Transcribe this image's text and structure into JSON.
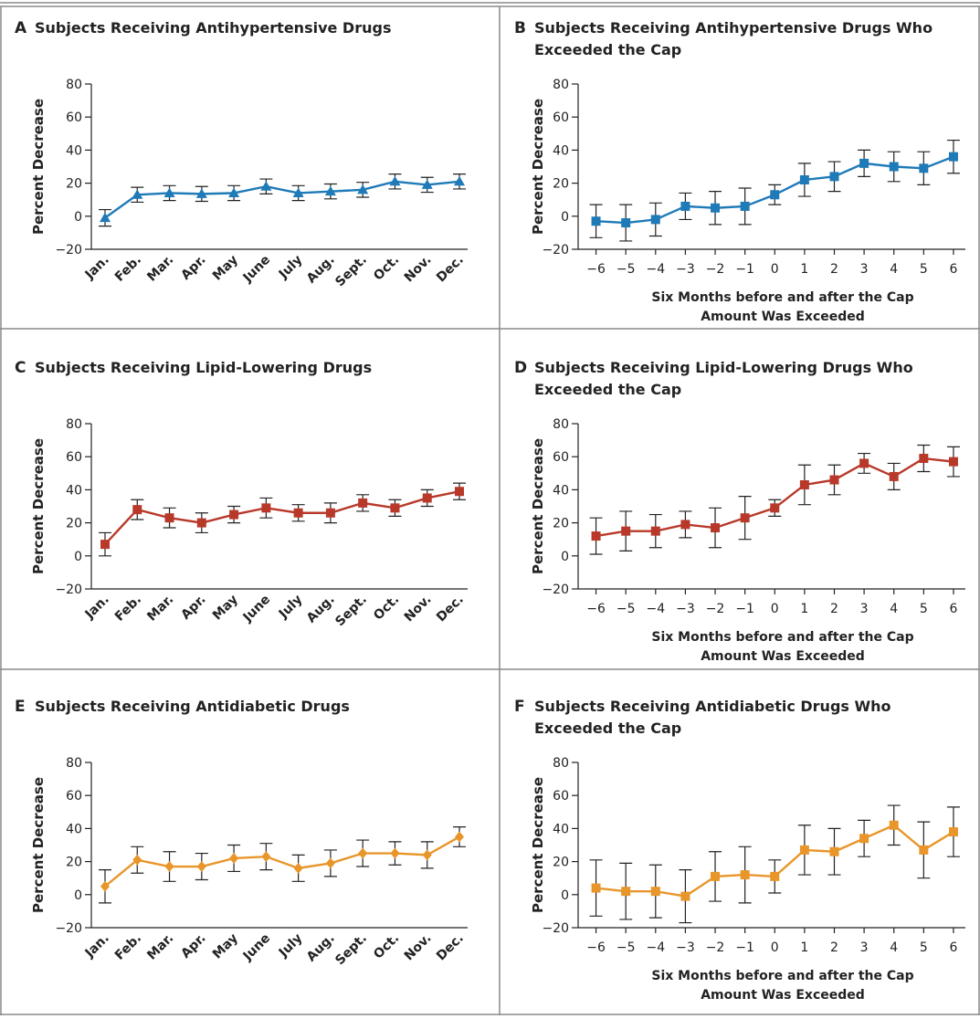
{
  "chart_data": [
    {
      "type": "line",
      "panel": "A",
      "title": "Subjects Receiving Antihypertensive Drugs",
      "y_label": "Percent Decrease",
      "categories": [
        "Jan.",
        "Feb.",
        "Mar.",
        "Apr.",
        "May",
        "June",
        "July",
        "Aug.",
        "Sept.",
        "Oct.",
        "Nov.",
        "Dec."
      ],
      "series": [
        {
          "color": "#1f7ab8",
          "marker": "triangle",
          "values": [
            -1,
            13,
            14,
            13.5,
            14,
            18,
            14,
            15,
            16,
            21,
            19,
            21
          ],
          "errors": [
            5,
            4.5,
            4.5,
            4.5,
            4.5,
            4.5,
            4.5,
            4.5,
            4.5,
            4.5,
            4.5,
            4.5
          ]
        }
      ],
      "ylim": [
        -20,
        80
      ],
      "yticks": [
        {
          "value": -20,
          "label": "−20"
        },
        0,
        20,
        40,
        60,
        80
      ]
    },
    {
      "type": "line",
      "panel": "B",
      "title": "Subjects Receiving Antihypertensive Drugs Who Exceeded the Cap",
      "y_label": "Percent Decrease",
      "x_label": "Six Months before and after the Cap Amount Was Exceeded",
      "x": [
        -6,
        -5,
        -4,
        -3,
        -2,
        -1,
        0,
        1,
        2,
        3,
        4,
        5,
        6
      ],
      "series": [
        {
          "color": "#1f7ab8",
          "marker": "square",
          "values": [
            -3,
            -4,
            -2,
            6,
            5,
            6,
            13,
            22,
            24,
            32,
            30,
            29,
            36
          ],
          "errors": [
            10,
            11,
            10,
            8,
            10,
            11,
            6,
            10,
            9,
            8,
            9,
            10,
            10
          ]
        }
      ],
      "xlim": [
        -6.6,
        6.4
      ],
      "xticks": [
        {
          "value": -6,
          "label": "−6"
        },
        {
          "value": -5,
          "label": "−5"
        },
        {
          "value": -4,
          "label": "−4"
        },
        {
          "value": -3,
          "label": "−3"
        },
        {
          "value": -2,
          "label": "−2"
        },
        {
          "value": -1,
          "label": "−1"
        },
        0,
        1,
        2,
        3,
        4,
        5,
        6
      ],
      "ylim": [
        -20,
        80
      ],
      "yticks": [
        {
          "value": -20,
          "label": "−20"
        },
        0,
        20,
        40,
        60,
        80
      ]
    },
    {
      "type": "line",
      "panel": "C",
      "title": "Subjects Receiving Lipid-Lowering Drugs",
      "y_label": "Percent Decrease",
      "categories": [
        "Jan.",
        "Feb.",
        "Mar.",
        "Apr.",
        "May",
        "June",
        "July",
        "Aug.",
        "Sept.",
        "Oct.",
        "Nov.",
        "Dec."
      ],
      "series": [
        {
          "color": "#b8392a",
          "marker": "square",
          "values": [
            7,
            28,
            23,
            20,
            25,
            29,
            26,
            26,
            32,
            29,
            35,
            39
          ],
          "errors": [
            7,
            6,
            6,
            6,
            5,
            6,
            5,
            6,
            5,
            5,
            5,
            5
          ]
        }
      ],
      "ylim": [
        -20,
        80
      ],
      "yticks": [
        {
          "value": -20,
          "label": "−20"
        },
        0,
        20,
        40,
        60,
        80
      ]
    },
    {
      "type": "line",
      "panel": "D",
      "title": "Subjects Receiving Lipid-Lowering Drugs Who Exceeded the Cap",
      "y_label": "Percent Decrease",
      "x_label": "Six Months before and after the Cap Amount Was Exceeded",
      "x": [
        -6,
        -5,
        -4,
        -3,
        -2,
        -1,
        0,
        1,
        2,
        3,
        4,
        5,
        6
      ],
      "series": [
        {
          "color": "#b8392a",
          "marker": "square",
          "values": [
            12,
            15,
            15,
            19,
            17,
            23,
            29,
            43,
            46,
            56,
            48,
            59,
            57
          ],
          "errors": [
            11,
            12,
            10,
            8,
            12,
            13,
            5,
            12,
            9,
            6,
            8,
            8,
            9
          ]
        }
      ],
      "xlim": [
        -6.6,
        6.4
      ],
      "xticks": [
        {
          "value": -6,
          "label": "−6"
        },
        {
          "value": -5,
          "label": "−5"
        },
        {
          "value": -4,
          "label": "−4"
        },
        {
          "value": -3,
          "label": "−3"
        },
        {
          "value": -2,
          "label": "−2"
        },
        {
          "value": -1,
          "label": "−1"
        },
        0,
        1,
        2,
        3,
        4,
        5,
        6
      ],
      "ylim": [
        -20,
        80
      ],
      "yticks": [
        {
          "value": -20,
          "label": "−20"
        },
        0,
        20,
        40,
        60,
        80
      ]
    },
    {
      "type": "line",
      "panel": "E",
      "title": "Subjects Receiving Antidiabetic Drugs",
      "y_label": "Percent Decrease",
      "categories": [
        "Jan.",
        "Feb.",
        "Mar.",
        "Apr.",
        "May",
        "June",
        "July",
        "Aug.",
        "Sept.",
        "Oct.",
        "Nov.",
        "Dec."
      ],
      "series": [
        {
          "color": "#e8962a",
          "marker": "diamond",
          "values": [
            5,
            21,
            17,
            17,
            22,
            23,
            16,
            19,
            25,
            25,
            24,
            35
          ],
          "errors": [
            10,
            8,
            9,
            8,
            8,
            8,
            8,
            8,
            8,
            7,
            8,
            6
          ]
        }
      ],
      "ylim": [
        -20,
        80
      ],
      "yticks": [
        {
          "value": -20,
          "label": "−20"
        },
        0,
        20,
        40,
        60,
        80
      ]
    },
    {
      "type": "line",
      "panel": "F",
      "title": "Subjects Receiving Antidiabetic Drugs Who Exceeded the Cap",
      "y_label": "Percent Decrease",
      "x_label": "Six Months before and after the Cap Amount Was Exceeded",
      "x": [
        -6,
        -5,
        -4,
        -3,
        -2,
        -1,
        0,
        1,
        2,
        3,
        4,
        5,
        6
      ],
      "series": [
        {
          "color": "#e8962a",
          "marker": "square",
          "values": [
            4,
            2,
            2,
            -1,
            11,
            12,
            11,
            27,
            26,
            34,
            42,
            27,
            38
          ],
          "errors": [
            17,
            17,
            16,
            16,
            15,
            17,
            10,
            15,
            14,
            11,
            12,
            17,
            15
          ]
        }
      ],
      "xlim": [
        -6.6,
        6.4
      ],
      "xticks": [
        {
          "value": -6,
          "label": "−6"
        },
        {
          "value": -5,
          "label": "−5"
        },
        {
          "value": -4,
          "label": "−4"
        },
        {
          "value": -3,
          "label": "−3"
        },
        {
          "value": -2,
          "label": "−2"
        },
        {
          "value": -1,
          "label": "−1"
        },
        0,
        1,
        2,
        3,
        4,
        5,
        6
      ],
      "ylim": [
        -20,
        80
      ],
      "yticks": [
        {
          "value": -20,
          "label": "−20"
        },
        0,
        20,
        40,
        60,
        80
      ]
    }
  ]
}
